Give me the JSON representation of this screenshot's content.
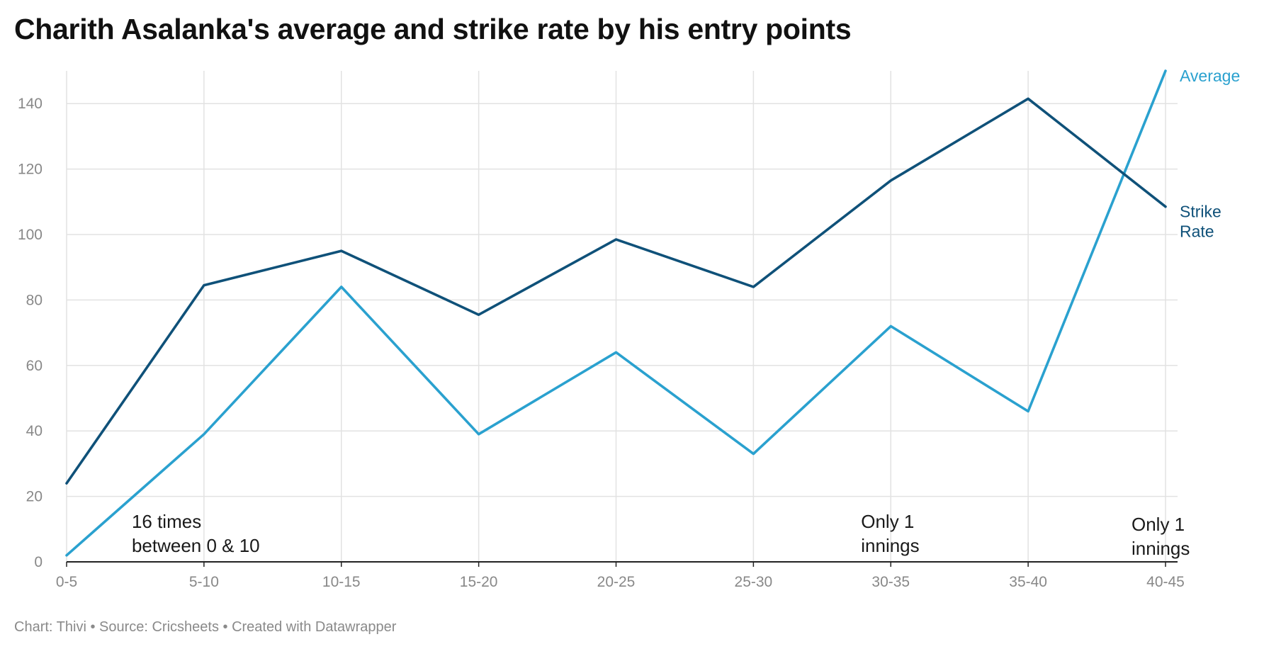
{
  "title": "Charith Asalanka's average and strike rate by his entry points",
  "footer": "Chart: Thivi • Source: Cricsheets • Created with Datawrapper",
  "colors": {
    "average": "#2aa1cf",
    "strike_rate": "#0f5179",
    "grid": "#e2e2e2",
    "axis": "#222222",
    "tick_text": "#888888"
  },
  "chart_data": {
    "type": "line",
    "title": "Charith Asalanka's average and strike rate by his entry points",
    "xlabel": "",
    "ylabel": "",
    "categories": [
      "0-5",
      "5-10",
      "10-15",
      "15-20",
      "20-25",
      "25-30",
      "30-35",
      "35-40",
      "40-45"
    ],
    "y_ticks": [
      0,
      20,
      40,
      60,
      80,
      100,
      120,
      140
    ],
    "ylim": [
      0,
      150
    ],
    "grid": true,
    "legend": "direct labels at line ends",
    "series": [
      {
        "name": "Average",
        "color": "#2aa1cf",
        "values": [
          2,
          39,
          84,
          39,
          64,
          33,
          72,
          46,
          150
        ]
      },
      {
        "name": "Strike Rate",
        "color": "#0f5179",
        "values": [
          24,
          84.5,
          95,
          75.5,
          98.5,
          84,
          116.5,
          141.5,
          108.5
        ]
      }
    ],
    "series_labels": {
      "average": [
        "Average"
      ],
      "strike_rate": [
        "Strike",
        "Rate"
      ]
    },
    "annotations": [
      {
        "lines": [
          "16 times",
          "between 0 & 10"
        ],
        "x_index": 0.5,
        "y": 10
      },
      {
        "lines": [
          "Only 1",
          "innings"
        ],
        "x_index": 6,
        "y": 10
      },
      {
        "lines": [
          "Only 1",
          "innings"
        ],
        "x_index": 8,
        "y": 10
      }
    ]
  }
}
